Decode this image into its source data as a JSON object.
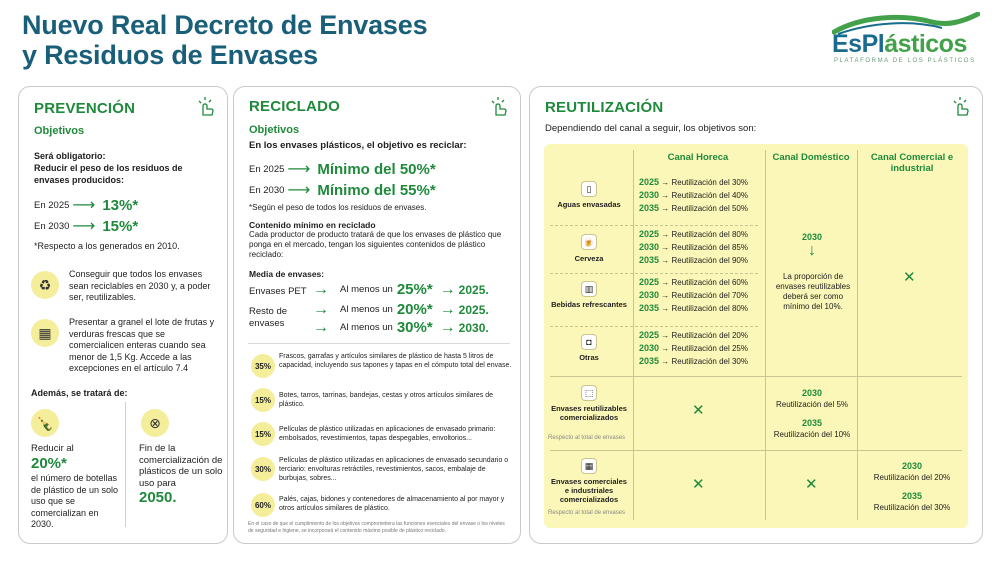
{
  "title": {
    "line1": "Nuevo Real Decreto de Envases",
    "line2": "y Residuos de Envases"
  },
  "logo": {
    "brand_a": "EsPl",
    "brand_b": "ásticos",
    "tagline": "PLATAFORMA DE LOS PLÁSTICOS"
  },
  "prevencion": {
    "heading": "PREVENCIÓN",
    "objetivos": "Objetivos",
    "obligatorio": "Será obligatorio:",
    "reducir": "Reducir el peso de los residuos de envases producidos:",
    "t1_year": "En 2025",
    "t1_val": "13%*",
    "t2_year": "En 2030",
    "t2_val": "15%*",
    "nota": "*Respecto a los generados en 2010.",
    "item1": "Conseguir que todos los envases sean reciclables en 2030 y, a poder ser, reutilizables.",
    "item2": "Presentar a granel el lote de frutas y verduras frescas que se comercialicen enteras cuando sea menor de 1,5 Kg. Accede a las excepciones en el artículo 7.4",
    "ademas": "Además, se tratará de:",
    "c1_a": "Reducir al",
    "c1_val": "20%*",
    "c1_b": "el número de botellas de plástico de un solo uso que se comercializan en 2030.",
    "c2_a": "Fin de la comercialización de plásticos de un solo uso para",
    "c2_val": "2050."
  },
  "reciclado": {
    "heading": "RECICLADO",
    "objetivos": "Objetivos",
    "intro": "En los envases plásticos, el objetivo es reciclar:",
    "r1_year": "En 2025",
    "r1_val": "Mínimo del 50%*",
    "r2_year": "En 2030",
    "r2_val": "Mínimo del 55%*",
    "nota": "*Según el peso de todos los residuos de envases.",
    "contenido_h": "Contenido mínimo en reciclado",
    "contenido_t": "Cada productor de producto tratará de que los envases de plástico que ponga en el mercado, tengan los siguientes contenidos de plástico reciclado:",
    "media_h": "Media de envases:",
    "pet": "Envases PET",
    "resto": "Resto de envases",
    "almenos": "Al menos un",
    "m1_val": "25%*",
    "m1_year": "2025.",
    "m2_val": "20%*",
    "m2_year": "2025.",
    "m3_val": "30%*",
    "m3_year": "2030.",
    "pcts": [
      {
        "v": "35%",
        "t": "Frascos, garrafas y artículos similares de plástico de hasta 5 litros de capacidad, incluyendo sus tapones y tapas en el cómputo total del envase."
      },
      {
        "v": "15%",
        "t": "Botes, tarros, tarrinas, bandejas, cestas y otros artículos similares de plástico."
      },
      {
        "v": "15%",
        "t": "Películas de plástico utilizadas en aplicaciones de envasado primario: embolsados, revestimientos, tapas despegables, envoltorios..."
      },
      {
        "v": "30%",
        "t": "Películas de plástico utilizadas en aplicaciones de envasado secundario o terciario: envolturas retráctiles, revestimientos, sacos, embalaje de burbujas, sobres..."
      },
      {
        "v": "60%",
        "t": "Palés, cajas, bidones y contenedores de almacenamiento al por mayor y otros artículos similares de plástico."
      }
    ],
    "foot": "En el caso de que el cumplimiento de los objetivos comprometiera las funciones esenciales del envase o los niveles de seguridad e higiene, se incorporará el contenido máximo posible de plástico reciclado."
  },
  "reutilizacion": {
    "heading": "REUTILIZACIÓN",
    "intro": "Dependiendo del canal a seguir, los objetivos son:",
    "col1": "Canal Horeca",
    "col2": "Canal Doméstico",
    "col3": "Canal Comercial e industrial",
    "rows": [
      {
        "label": "Aguas envasadas",
        "lines": [
          [
            "2025",
            "Reutilización del 30%"
          ],
          [
            "2030",
            "Reutilización del 40%"
          ],
          [
            "2035",
            "Reutilización del 50%"
          ]
        ]
      },
      {
        "label": "Cerveza",
        "lines": [
          [
            "2025",
            "Reutilización del 80%"
          ],
          [
            "2030",
            "Reutilización del 85%"
          ],
          [
            "2035",
            "Reutilización del 90%"
          ]
        ]
      },
      {
        "label": "Bebidas refrescantes",
        "lines": [
          [
            "2025",
            "Reutilización del 60%"
          ],
          [
            "2030",
            "Reutilización del 70%"
          ],
          [
            "2035",
            "Reutilización del 80%"
          ]
        ]
      },
      {
        "label": "Otras",
        "lines": [
          [
            "2025",
            "Reutilización del 20%"
          ],
          [
            "2030",
            "Reutilización del 25%"
          ],
          [
            "2035",
            "Reutilización del 30%"
          ]
        ]
      }
    ],
    "dom_year": "2030",
    "dom_text": "La proporción de envases reutilizables deberá ser como mínimo del 10%.",
    "row5_label": "Envases reutilizables comercializados",
    "row5_note": "Respecto al total de envases",
    "row5_y1": "2030",
    "row5_t1": "Reutilización del 5%",
    "row5_y2": "2035",
    "row5_t2": "Reutilización del 10%",
    "row6_label": "Envases comerciales e industriales comercializados",
    "row6_note": "Respecto al total de envases",
    "row6_y1": "2030",
    "row6_t1": "Reutilización del 20%",
    "row6_y2": "2035",
    "row6_t2": "Reutilización del 30%",
    "cross": "✕"
  }
}
